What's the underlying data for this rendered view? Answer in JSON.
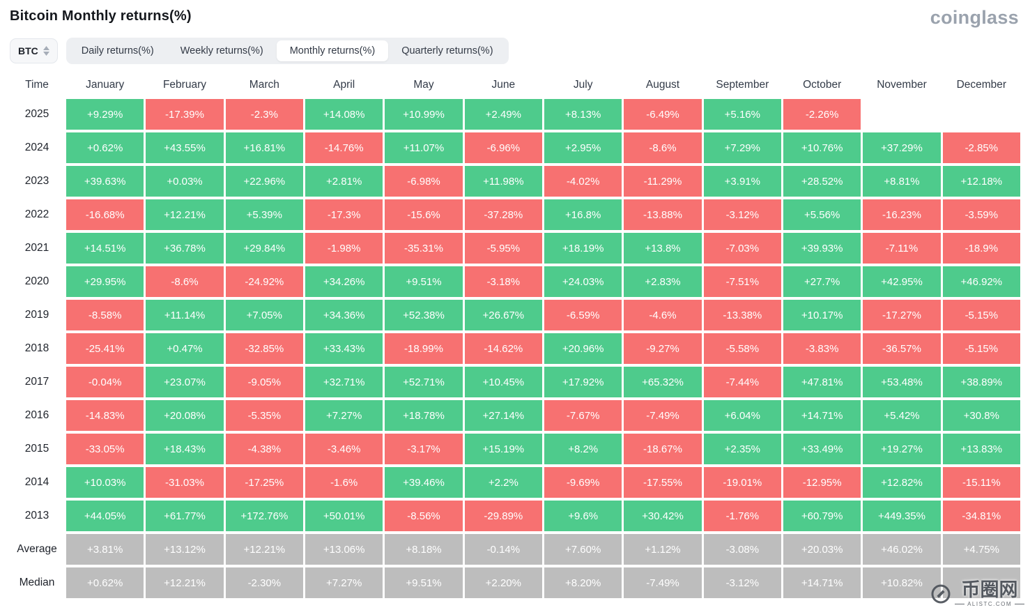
{
  "page": {
    "title": "Bitcoin Monthly returns(%)",
    "logo": "coinglass"
  },
  "toolbar": {
    "coin_selector": "BTC",
    "tabs": [
      {
        "label": "Daily returns(%)",
        "active": false
      },
      {
        "label": "Weekly returns(%)",
        "active": false
      },
      {
        "label": "Monthly returns(%)",
        "active": true
      },
      {
        "label": "Quarterly returns(%)",
        "active": false
      }
    ]
  },
  "colors": {
    "green": "#4ecb8c",
    "red": "#f77171",
    "gray": "#bdbdbd"
  },
  "table": {
    "columns": [
      "Time",
      "January",
      "February",
      "March",
      "April",
      "May",
      "June",
      "July",
      "August",
      "September",
      "October",
      "November",
      "December"
    ],
    "rows": [
      {
        "label": "2025",
        "values": [
          "+9.29%",
          "-17.39%",
          "-2.3%",
          "+14.08%",
          "+10.99%",
          "+2.49%",
          "+8.13%",
          "-6.49%",
          "+5.16%",
          "-2.26%",
          "",
          ""
        ],
        "colors": [
          "green",
          "red",
          "red",
          "green",
          "green",
          "green",
          "green",
          "red",
          "green",
          "red",
          "empty",
          "empty"
        ]
      },
      {
        "label": "2024",
        "values": [
          "+0.62%",
          "+43.55%",
          "+16.81%",
          "-14.76%",
          "+11.07%",
          "-6.96%",
          "+2.95%",
          "-8.6%",
          "+7.29%",
          "+10.76%",
          "+37.29%",
          "-2.85%"
        ],
        "colors": [
          "green",
          "green",
          "green",
          "red",
          "green",
          "red",
          "green",
          "red",
          "green",
          "green",
          "green",
          "red"
        ]
      },
      {
        "label": "2023",
        "values": [
          "+39.63%",
          "+0.03%",
          "+22.96%",
          "+2.81%",
          "-6.98%",
          "+11.98%",
          "-4.02%",
          "-11.29%",
          "+3.91%",
          "+28.52%",
          "+8.81%",
          "+12.18%"
        ],
        "colors": [
          "green",
          "green",
          "green",
          "green",
          "red",
          "green",
          "red",
          "red",
          "green",
          "green",
          "green",
          "green"
        ]
      },
      {
        "label": "2022",
        "values": [
          "-16.68%",
          "+12.21%",
          "+5.39%",
          "-17.3%",
          "-15.6%",
          "-37.28%",
          "+16.8%",
          "-13.88%",
          "-3.12%",
          "+5.56%",
          "-16.23%",
          "-3.59%"
        ],
        "colors": [
          "red",
          "green",
          "green",
          "red",
          "red",
          "red",
          "green",
          "red",
          "red",
          "green",
          "red",
          "red"
        ]
      },
      {
        "label": "2021",
        "values": [
          "+14.51%",
          "+36.78%",
          "+29.84%",
          "-1.98%",
          "-35.31%",
          "-5.95%",
          "+18.19%",
          "+13.8%",
          "-7.03%",
          "+39.93%",
          "-7.11%",
          "-18.9%"
        ],
        "colors": [
          "green",
          "green",
          "green",
          "red",
          "red",
          "red",
          "green",
          "green",
          "red",
          "green",
          "red",
          "red"
        ]
      },
      {
        "label": "2020",
        "values": [
          "+29.95%",
          "-8.6%",
          "-24.92%",
          "+34.26%",
          "+9.51%",
          "-3.18%",
          "+24.03%",
          "+2.83%",
          "-7.51%",
          "+27.7%",
          "+42.95%",
          "+46.92%"
        ],
        "colors": [
          "green",
          "red",
          "red",
          "green",
          "green",
          "red",
          "green",
          "green",
          "red",
          "green",
          "green",
          "green"
        ]
      },
      {
        "label": "2019",
        "values": [
          "-8.58%",
          "+11.14%",
          "+7.05%",
          "+34.36%",
          "+52.38%",
          "+26.67%",
          "-6.59%",
          "-4.6%",
          "-13.38%",
          "+10.17%",
          "-17.27%",
          "-5.15%"
        ],
        "colors": [
          "red",
          "green",
          "green",
          "green",
          "green",
          "green",
          "red",
          "red",
          "red",
          "green",
          "red",
          "red"
        ]
      },
      {
        "label": "2018",
        "values": [
          "-25.41%",
          "+0.47%",
          "-32.85%",
          "+33.43%",
          "-18.99%",
          "-14.62%",
          "+20.96%",
          "-9.27%",
          "-5.58%",
          "-3.83%",
          "-36.57%",
          "-5.15%"
        ],
        "colors": [
          "red",
          "green",
          "red",
          "green",
          "red",
          "red",
          "green",
          "red",
          "red",
          "red",
          "red",
          "red"
        ]
      },
      {
        "label": "2017",
        "values": [
          "-0.04%",
          "+23.07%",
          "-9.05%",
          "+32.71%",
          "+52.71%",
          "+10.45%",
          "+17.92%",
          "+65.32%",
          "-7.44%",
          "+47.81%",
          "+53.48%",
          "+38.89%"
        ],
        "colors": [
          "red",
          "green",
          "red",
          "green",
          "green",
          "green",
          "green",
          "green",
          "red",
          "green",
          "green",
          "green"
        ]
      },
      {
        "label": "2016",
        "values": [
          "-14.83%",
          "+20.08%",
          "-5.35%",
          "+7.27%",
          "+18.78%",
          "+27.14%",
          "-7.67%",
          "-7.49%",
          "+6.04%",
          "+14.71%",
          "+5.42%",
          "+30.8%"
        ],
        "colors": [
          "red",
          "green",
          "red",
          "green",
          "green",
          "green",
          "red",
          "red",
          "green",
          "green",
          "green",
          "green"
        ]
      },
      {
        "label": "2015",
        "values": [
          "-33.05%",
          "+18.43%",
          "-4.38%",
          "-3.46%",
          "-3.17%",
          "+15.19%",
          "+8.2%",
          "-18.67%",
          "+2.35%",
          "+33.49%",
          "+19.27%",
          "+13.83%"
        ],
        "colors": [
          "red",
          "green",
          "red",
          "red",
          "red",
          "green",
          "green",
          "red",
          "green",
          "green",
          "green",
          "green"
        ]
      },
      {
        "label": "2014",
        "values": [
          "+10.03%",
          "-31.03%",
          "-17.25%",
          "-1.6%",
          "+39.46%",
          "+2.2%",
          "-9.69%",
          "-17.55%",
          "-19.01%",
          "-12.95%",
          "+12.82%",
          "-15.11%"
        ],
        "colors": [
          "green",
          "red",
          "red",
          "red",
          "green",
          "green",
          "red",
          "red",
          "red",
          "red",
          "green",
          "red"
        ]
      },
      {
        "label": "2013",
        "values": [
          "+44.05%",
          "+61.77%",
          "+172.76%",
          "+50.01%",
          "-8.56%",
          "-29.89%",
          "+9.6%",
          "+30.42%",
          "-1.76%",
          "+60.79%",
          "+449.35%",
          "-34.81%"
        ],
        "colors": [
          "green",
          "green",
          "green",
          "green",
          "red",
          "red",
          "green",
          "green",
          "red",
          "green",
          "green",
          "red"
        ]
      },
      {
        "label": "Average",
        "values": [
          "+3.81%",
          "+13.12%",
          "+12.21%",
          "+13.06%",
          "+8.18%",
          "-0.14%",
          "+7.60%",
          "+1.12%",
          "-3.08%",
          "+20.03%",
          "+46.02%",
          "+4.75%"
        ],
        "colors": [
          "gray",
          "gray",
          "gray",
          "gray",
          "gray",
          "gray",
          "gray",
          "gray",
          "gray",
          "gray",
          "gray",
          "gray"
        ]
      },
      {
        "label": "Median",
        "values": [
          "+0.62%",
          "+12.21%",
          "-2.30%",
          "+7.27%",
          "+9.51%",
          "+2.20%",
          "+8.20%",
          "-7.49%",
          "-3.12%",
          "+14.71%",
          "+10.82%",
          ""
        ],
        "colors": [
          "gray",
          "gray",
          "gray",
          "gray",
          "gray",
          "gray",
          "gray",
          "gray",
          "gray",
          "gray",
          "gray",
          "gray"
        ]
      }
    ]
  },
  "watermark": {
    "text": "币圈网",
    "subtext": "ALISTC.COM"
  }
}
